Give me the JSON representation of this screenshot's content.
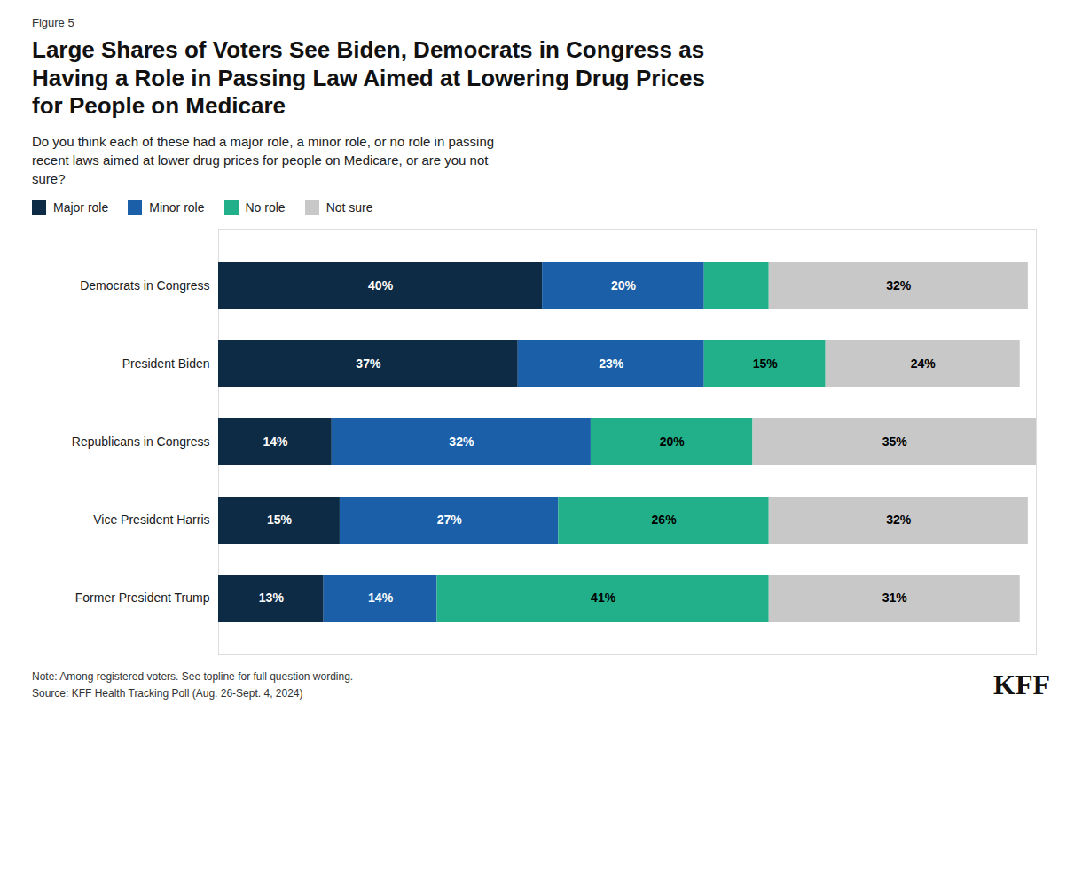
{
  "chart_data": {
    "type": "bar",
    "orientation": "horizontal",
    "stacked": true,
    "title": "Large Shares of Voters See Biden, Democrats in Congress as\nHaving a Role in Passing Law Aimed at Lowering Drug Prices\nfor People on Medicare",
    "subtitle": "Do you think each of these had a major role, a minor role, or no role in passing\nrecent laws aimed at lower drug prices for people on Medicare, or are you not\nsure?",
    "annotations": [
      "Figure 5",
      "Note: Among registered voters. See topline for full question wording.",
      "Source: KFF Health Tracking Poll (Aug. 26-Sept. 4, 2024)",
      "KFF"
    ],
    "categories": [
      "Democrats in Congress",
      "President Biden",
      "Republicans in Congress",
      "Vice President Harris",
      "Former President Trump"
    ],
    "series": [
      {
        "name": "Major role",
        "color": "#0d2b45",
        "values": [
          40,
          37,
          14,
          15,
          13
        ],
        "value_labels": [
          "40%",
          "37%",
          "14%",
          "15%",
          "13%"
        ]
      },
      {
        "name": "Minor role",
        "color": "#1b5fa8",
        "values": [
          20,
          23,
          32,
          27,
          14
        ],
        "value_labels": [
          "20%",
          "23%",
          "32%",
          "27%",
          "14%"
        ]
      },
      {
        "name": "No role",
        "color": "#21b08a",
        "values": [
          8,
          15,
          20,
          26,
          41
        ],
        "value_labels": [
          null,
          "15%",
          "20%",
          "26%",
          "41%"
        ]
      },
      {
        "name": "Not sure",
        "color": "#c8c8c8",
        "values": [
          32,
          24,
          35,
          32,
          31
        ],
        "value_labels": [
          "32%",
          "24%",
          "35%",
          "32%",
          "31%"
        ]
      }
    ],
    "xlim": [
      0,
      101
    ],
    "tick_labels": "y",
    "data_labels": true,
    "legend": "upper left"
  }
}
